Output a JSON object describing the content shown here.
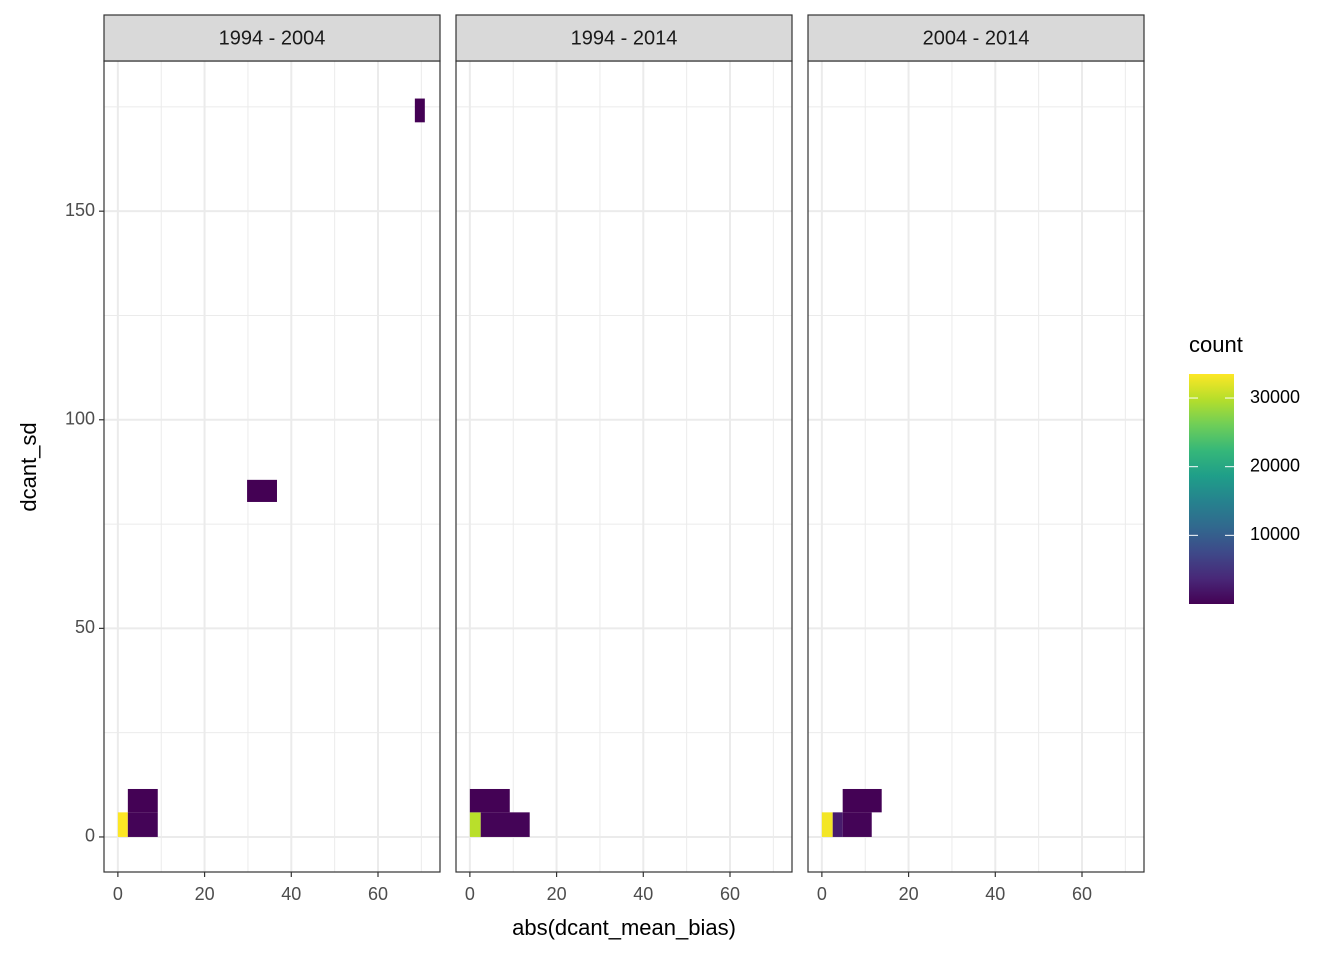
{
  "chart_data": {
    "type": "bin2d",
    "x_label": "abs(dcant_mean_bias)",
    "y_label": "dcant_sd",
    "xlim": [
      -3.2,
      74.3
    ],
    "ylim": [
      -8.4,
      186
    ],
    "xticks": [
      0,
      20,
      40,
      60
    ],
    "yticks": [
      0,
      50,
      100,
      150
    ],
    "xminor": [
      10,
      30,
      50,
      70
    ],
    "yminor": [
      25,
      75,
      125,
      175
    ],
    "grid": true,
    "legend": {
      "title": "count",
      "position": "right",
      "colorlim": [
        0,
        33500
      ],
      "ticks": [
        10000,
        20000,
        30000
      ],
      "colors": [
        "#440154",
        "#482878",
        "#3e4989",
        "#31688e",
        "#26828e",
        "#1f9e89",
        "#35b779",
        "#6ece58",
        "#b5de2b",
        "#fde725"
      ]
    },
    "facets": [
      {
        "title": "1994 - 2004",
        "tiles": [
          {
            "xmin": 0,
            "xmax": 2.3,
            "ymin": 0,
            "ymax": 5.9,
            "count": 33500
          },
          {
            "xmin": 2.3,
            "xmax": 9.2,
            "ymin": 0,
            "ymax": 5.9,
            "count": 300
          },
          {
            "xmin": 2.3,
            "xmax": 9.2,
            "ymin": 5.9,
            "ymax": 11.5,
            "count": 100
          },
          {
            "xmin": 29.8,
            "xmax": 36.7,
            "ymin": 80.3,
            "ymax": 85.6,
            "count": 10
          },
          {
            "xmin": 68.5,
            "xmax": 70.8,
            "ymin": 171.3,
            "ymax": 177,
            "count": 5
          }
        ]
      },
      {
        "title": "1994 - 2014",
        "tiles": [
          {
            "xmin": 0,
            "xmax": 2.5,
            "ymin": 0,
            "ymax": 5.9,
            "count": 30000
          },
          {
            "xmin": 2.5,
            "xmax": 13.8,
            "ymin": 0,
            "ymax": 5.9,
            "count": 300
          },
          {
            "xmin": 0,
            "xmax": 9.2,
            "ymin": 5.9,
            "ymax": 11.5,
            "count": 100
          }
        ]
      },
      {
        "title": "2004 - 2014",
        "tiles": [
          {
            "xmin": 0,
            "xmax": 2.5,
            "ymin": 0,
            "ymax": 5.9,
            "count": 33000
          },
          {
            "xmin": 2.5,
            "xmax": 4.8,
            "ymin": 0,
            "ymax": 5.9,
            "count": 2500
          },
          {
            "xmin": 4.8,
            "xmax": 11.5,
            "ymin": 0,
            "ymax": 5.9,
            "count": 300
          },
          {
            "xmin": 4.8,
            "xmax": 13.8,
            "ymin": 5.9,
            "ymax": 11.5,
            "count": 100
          }
        ]
      }
    ]
  }
}
